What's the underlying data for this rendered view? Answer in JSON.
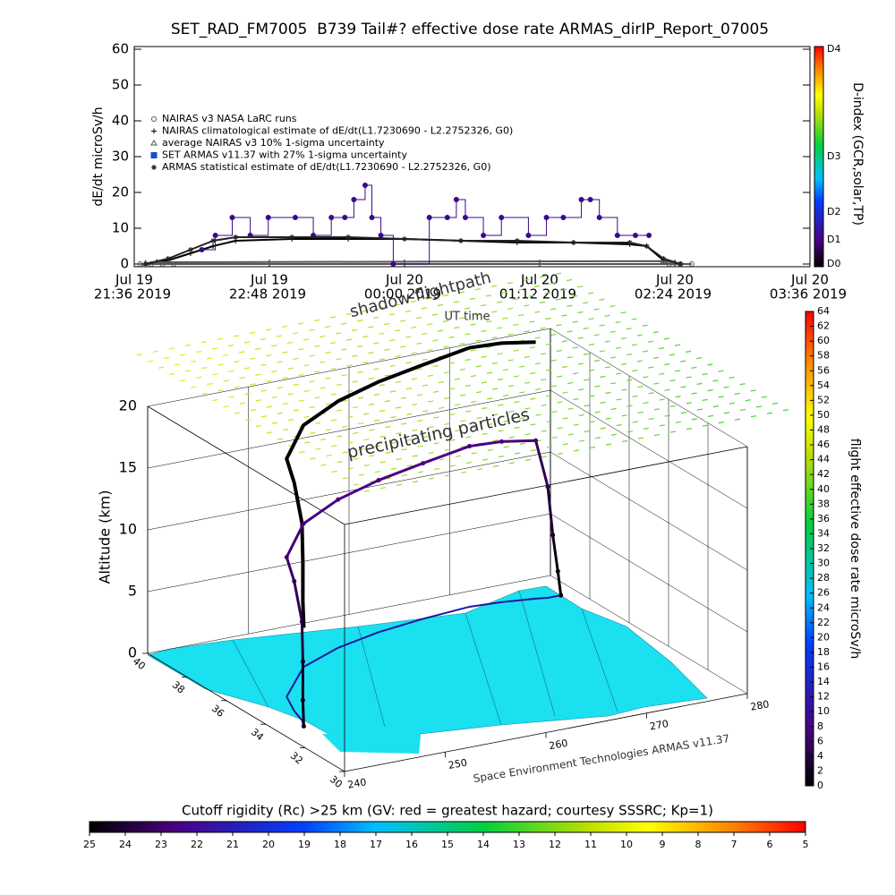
{
  "chart_data": [
    {
      "type": "line",
      "title": "SET_RAD_FM7005  B739 Tail#? effective dose rate ARMAS_dirIP_Report_07005",
      "ylabel": "dE/dt microSv/h",
      "y2label": "D-index (GCR,solar,TP)",
      "y2categories": [
        "D0",
        "D1",
        "D2",
        "D3",
        "D4"
      ],
      "xlim": [
        21.6,
        27.6
      ],
      "xticks": [
        {
          "value": 21.6,
          "label": "21:36 2019",
          "date": "Jul 19"
        },
        {
          "value": 22.8,
          "label": "22:48 2019",
          "date": "Jul 19"
        },
        {
          "value": 24.0,
          "label": "00:00 2019",
          "date": "Jul 20"
        },
        {
          "value": 25.2,
          "label": "01:12 2019",
          "date": "Jul 20"
        },
        {
          "value": 26.4,
          "label": "02:24 2019",
          "date": "Jul 20"
        },
        {
          "value": 27.6,
          "label": "03:36 2019",
          "date": "Jul 20"
        }
      ],
      "ylim": [
        -0.75,
        60.75
      ],
      "yticks": [
        0,
        10,
        20,
        30,
        40,
        50,
        60
      ],
      "series": [
        {
          "name": "NAIRAS v3 NASA LaRC runs",
          "color": "#555555",
          "marker": "circle-x",
          "x": [
            21.65,
            21.75,
            21.85,
            21.95,
            26.35,
            26.45,
            26.55
          ],
          "values": [
            0,
            0,
            0,
            0,
            0,
            0,
            0
          ]
        },
        {
          "name": "NAIRAS climatological estimate of dE/dt(L1.7230690 - L2.2752326, G0)",
          "color": "#000000",
          "marker": "plus",
          "x": [
            21.7,
            21.9,
            22.1,
            22.3,
            22.5,
            23.0,
            23.5,
            24.0,
            24.5,
            25.0,
            25.5,
            26.0,
            26.15,
            26.3,
            26.45
          ],
          "values": [
            0,
            1,
            3,
            5,
            6.5,
            7,
            7,
            7,
            6.5,
            6,
            6,
            5.5,
            5,
            1,
            0
          ]
        },
        {
          "name": "average NAIRAS v3 10% 1-sigma uncertainty",
          "color": "#555555",
          "marker": "triangle",
          "x": [
            21.7,
            21.8,
            26.3,
            26.4
          ],
          "values": [
            0.2,
            0.5,
            0.8,
            0.3
          ]
        },
        {
          "name": "SET ARMAS v11.37 with 27% 1-sigma uncertainty",
          "color": "#3a0a8c",
          "marker": "circle",
          "x": [
            22.2,
            22.32,
            22.47,
            22.63,
            22.79,
            23.03,
            23.19,
            23.35,
            23.47,
            23.55,
            23.65,
            23.71,
            23.79,
            23.9,
            24.22,
            24.38,
            24.46,
            24.54,
            24.7,
            24.86,
            25.1,
            25.26,
            25.41,
            25.57,
            25.65,
            25.73,
            25.89,
            26.05,
            26.17
          ],
          "values": [
            4,
            8,
            13,
            8,
            13,
            13,
            8,
            13,
            13,
            18,
            22,
            13,
            8,
            0,
            13,
            13,
            18,
            13,
            8,
            13,
            8,
            13,
            13,
            18,
            18,
            13,
            8,
            8,
            8
          ]
        },
        {
          "name": "ARMAS statistical estimate of dE/dt(L1.7230690 - L2.2752326, G0)",
          "color": "#222222",
          "marker": "star",
          "x": [
            21.7,
            21.9,
            22.1,
            22.3,
            22.5,
            23.0,
            23.5,
            24.0,
            24.5,
            25.0,
            25.5,
            26.0,
            26.15,
            26.3,
            26.45
          ],
          "values": [
            0,
            1.5,
            4,
            6.5,
            7.5,
            7.5,
            7.5,
            7,
            6.5,
            6.5,
            6,
            6,
            5,
            1.5,
            0
          ]
        }
      ]
    },
    {
      "type": "flight3d",
      "zlabel": "Altitude (km)",
      "zlim": [
        0,
        20
      ],
      "zticks": [
        0,
        5,
        10,
        15,
        20
      ],
      "latlim": [
        30,
        40
      ],
      "latticks": [
        40,
        38,
        36,
        34,
        32,
        30
      ],
      "lonlim": [
        240,
        280
      ],
      "lonticks": [
        240,
        250,
        260,
        270,
        280
      ],
      "annotations": [
        "shadow flightpath",
        "UT time",
        "precipitating particles",
        "Space Environment Technologies ARMAS v11.37"
      ],
      "flight": {
        "lon": [
          242.6,
          242.7,
          242.9,
          243.2,
          243.8,
          245,
          250,
          255,
          260,
          265,
          270,
          273,
          276,
          277,
          277.5,
          278,
          278.3
        ],
        "lat": [
          33.4,
          33.5,
          33.6,
          33.8,
          34.5,
          35.5,
          37.2,
          38,
          38.5,
          38.8,
          39,
          38.9,
          38.7,
          38.6,
          38.6,
          38.6,
          38.6
        ],
        "alt": [
          0,
          2,
          5,
          8,
          10.5,
          11.3,
          11.6,
          12,
          12.3,
          12.6,
          13,
          13,
          12.8,
          9,
          5,
          2,
          0
        ],
        "dose": [
          0.5,
          1,
          2,
          4,
          5,
          6,
          7,
          7.5,
          8,
          8,
          8,
          8,
          7,
          5,
          3,
          1,
          0.5
        ]
      },
      "dose_colorbar": {
        "label": "flight effective dose rate microSv/h",
        "lim": [
          0,
          64
        ],
        "ticks": [
          0,
          2,
          4,
          6,
          8,
          10,
          12,
          14,
          16,
          18,
          20,
          22,
          24,
          26,
          28,
          30,
          32,
          34,
          36,
          38,
          40,
          42,
          44,
          46,
          48,
          50,
          52,
          54,
          56,
          58,
          60,
          62,
          64
        ]
      },
      "rigidity_colorbar": {
        "label": "Cutoff rigidity (Rc) >25 km (GV: red = greatest hazard; courtesy SSSRC; Kp=1)",
        "lim": [
          25,
          5
        ],
        "ticks": [
          25,
          24,
          23,
          22,
          21,
          20,
          19,
          18,
          17,
          16,
          15,
          14,
          13,
          12,
          11,
          10,
          9,
          8,
          7,
          6,
          5
        ]
      }
    }
  ]
}
